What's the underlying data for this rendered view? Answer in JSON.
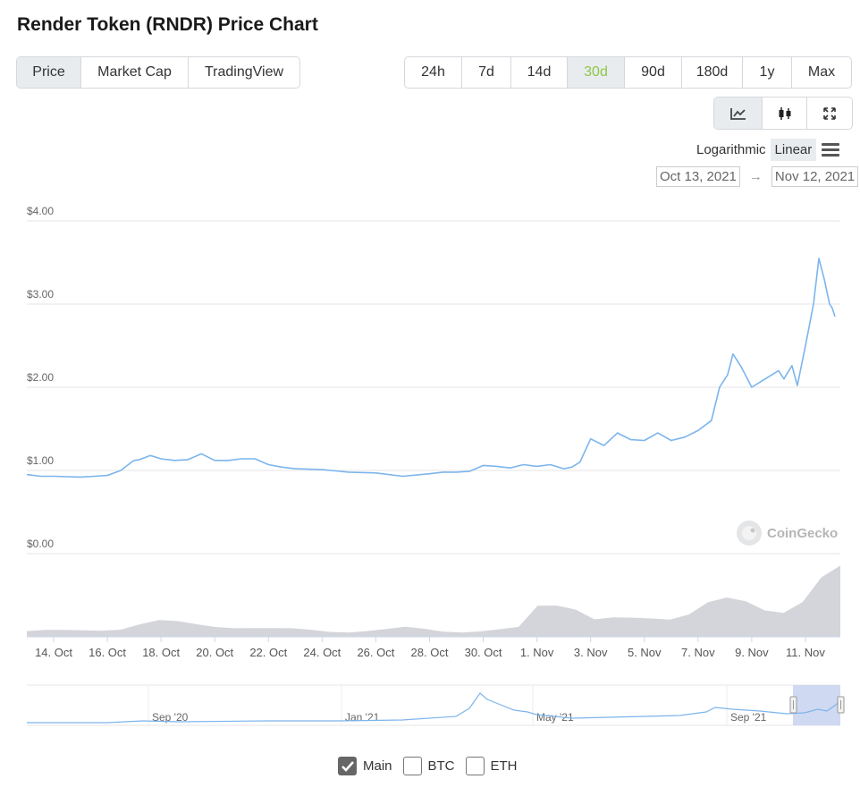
{
  "title": "Render Token (RNDR) Price Chart",
  "view_tabs": [
    {
      "label": "Price",
      "active": true
    },
    {
      "label": "Market Cap",
      "active": false
    },
    {
      "label": "TradingView",
      "active": false
    }
  ],
  "range_tabs": [
    {
      "label": "24h",
      "active": false
    },
    {
      "label": "7d",
      "active": false
    },
    {
      "label": "14d",
      "active": false
    },
    {
      "label": "30d",
      "active": true
    },
    {
      "label": "90d",
      "active": false
    },
    {
      "label": "180d",
      "active": false
    },
    {
      "label": "1y",
      "active": false
    },
    {
      "label": "Max",
      "active": false
    }
  ],
  "chart_type_icons": [
    "line-chart-icon",
    "candlestick-icon",
    "fullscreen-icon"
  ],
  "scale_options": {
    "logarithmic": "Logarithmic",
    "linear": "Linear",
    "active": "Linear"
  },
  "date_range": {
    "from": "Oct 13, 2021",
    "arrow": "→",
    "to": "Nov 12, 2021"
  },
  "watermark": "CoinGecko",
  "colors": {
    "line": "#7cb5ec",
    "volume": "#d3d5da",
    "accent": "#8dc647",
    "navigator_selection": "#c7d2ee"
  },
  "chart_data": {
    "type": "line",
    "y_ticks": [
      "$4.00",
      "$3.00",
      "$2.00",
      "$1.00",
      "$0.00"
    ],
    "ylim": [
      0,
      4
    ],
    "x_ticks": [
      "14. Oct",
      "16. Oct",
      "18. Oct",
      "20. Oct",
      "22. Oct",
      "24. Oct",
      "26. Oct",
      "28. Oct",
      "30. Oct",
      "1. Nov",
      "3. Nov",
      "5. Nov",
      "7. Nov",
      "9. Nov",
      "11. Nov"
    ],
    "xlim_days": [
      13,
      43.3
    ],
    "series": [
      {
        "x_days": [
          13.0,
          13.5,
          14.0,
          15.0,
          15.5,
          16.0,
          16.5,
          16.9,
          17.0,
          17.2,
          17.6,
          18.0,
          18.5,
          19.0,
          19.5,
          20.0,
          20.5,
          21.0,
          21.5,
          22.0,
          22.5,
          23.0,
          24.0,
          25.0,
          26.0,
          27.0,
          28.0,
          28.5,
          29.0,
          29.5,
          30.0,
          30.5,
          31.0,
          31.5,
          32.0,
          32.5,
          33.0,
          33.3,
          33.6,
          34.0,
          34.5,
          35.0,
          35.5,
          36.0,
          36.5,
          37.0,
          37.5,
          38.0,
          38.5,
          38.8,
          39.1,
          39.3,
          39.6,
          40.0,
          40.5,
          41.0,
          41.2,
          41.5,
          41.7,
          42.0,
          42.3,
          42.5,
          42.7,
          42.8,
          42.9,
          43.0,
          43.1
        ],
        "y": [
          0.95,
          0.93,
          0.93,
          0.92,
          0.93,
          0.94,
          1.0,
          1.1,
          1.12,
          1.13,
          1.18,
          1.14,
          1.12,
          1.13,
          1.2,
          1.12,
          1.12,
          1.14,
          1.14,
          1.07,
          1.04,
          1.02,
          1.01,
          0.98,
          0.97,
          0.93,
          0.96,
          0.98,
          0.98,
          0.99,
          1.06,
          1.05,
          1.03,
          1.07,
          1.05,
          1.07,
          1.02,
          1.04,
          1.1,
          1.38,
          1.3,
          1.45,
          1.37,
          1.36,
          1.45,
          1.36,
          1.4,
          1.48,
          1.6,
          2.0,
          2.15,
          2.4,
          2.25,
          2.0,
          2.1,
          2.2,
          2.1,
          2.26,
          2.02,
          2.5,
          3.0,
          3.55,
          3.3,
          3.15,
          3.0,
          2.95,
          2.85
        ],
        "name": ""
      }
    ],
    "volume_profile": [
      0.08,
      0.08,
      0.08,
      0.09,
      0.1,
      0.12,
      0.18,
      0.22,
      0.2,
      0.17,
      0.15,
      0.14,
      0.13,
      0.11,
      0.1,
      0.09,
      0.08,
      0.08,
      0.09,
      0.1,
      0.12,
      0.1,
      0.08,
      0.08,
      0.09,
      0.1,
      0.12,
      0.42,
      0.44,
      0.4,
      0.26,
      0.27,
      0.25,
      0.24,
      0.24,
      0.33,
      0.5,
      0.55,
      0.48,
      0.35,
      0.33,
      0.5,
      0.85,
      1.0
    ]
  },
  "navigator": {
    "labels": [
      "Sep '20",
      "Jan '21",
      "May '21",
      "Sep '21"
    ]
  },
  "legend": [
    {
      "label": "Main",
      "checked": true
    },
    {
      "label": "BTC",
      "checked": false
    },
    {
      "label": "ETH",
      "checked": false
    }
  ]
}
